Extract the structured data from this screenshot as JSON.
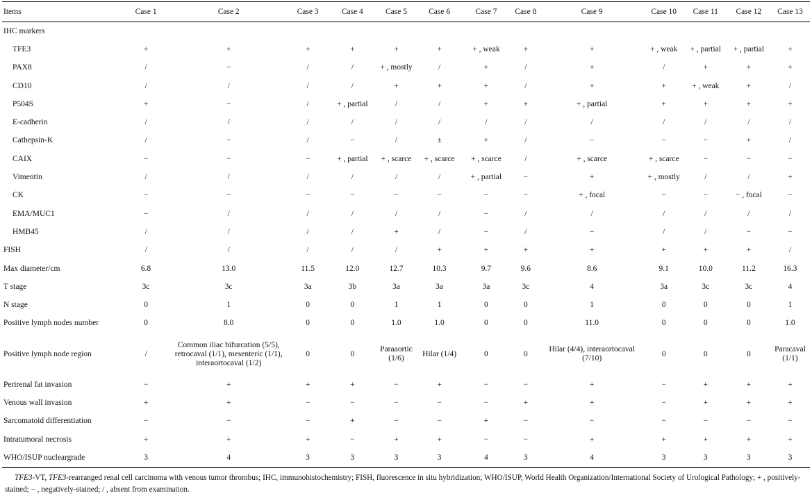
{
  "table": {
    "headers": [
      "Items",
      "Case 1",
      "Case 2",
      "Case 3",
      "Case 4",
      "Case 5",
      "Case 6",
      "Case 7",
      "Case 8",
      "Case 9",
      "Case 10",
      "Case 11",
      "Case 12",
      "Case 13"
    ],
    "rows": [
      {
        "label": "IHC markers",
        "group": true,
        "cells": [
          "",
          "",
          "",
          "",
          "",
          "",
          "",
          "",
          "",
          "",
          "",
          "",
          ""
        ]
      },
      {
        "label": "TFE3",
        "sub": true,
        "cells": [
          "+",
          "+",
          "+",
          "+",
          "+",
          "+",
          "+ , weak",
          "+",
          "+",
          "+ , weak",
          "+ , partial",
          "+ , partial",
          "+"
        ]
      },
      {
        "label": "PAX8",
        "sub": true,
        "cells": [
          "/",
          "−",
          "/",
          "/",
          "+ , mostly",
          "/",
          "+",
          "/",
          "+",
          "/",
          "+",
          "+",
          "+"
        ]
      },
      {
        "label": "CD10",
        "sub": true,
        "cells": [
          "/",
          "/",
          "/",
          "/",
          "+",
          "+",
          "+",
          "/",
          "+",
          "+",
          "+ , weak",
          "+",
          "/"
        ]
      },
      {
        "label": "P504S",
        "sub": true,
        "cells": [
          "+",
          "−",
          "/",
          "+ , partial",
          "/",
          "/",
          "+",
          "+",
          "+ , partial",
          "+",
          "+",
          "+",
          "+"
        ]
      },
      {
        "label": "E-cadherin",
        "sub": true,
        "cells": [
          "/",
          "/",
          "/",
          "/",
          "/",
          "/",
          "/",
          "/",
          "/",
          "/",
          "/",
          "/",
          "/"
        ]
      },
      {
        "label": "Cathepsin-K",
        "sub": true,
        "cells": [
          "/",
          "−",
          "/",
          "−",
          "/",
          "±",
          "+",
          "/",
          "−",
          "−",
          "−",
          "+",
          "/"
        ]
      },
      {
        "label": "CAIX",
        "sub": true,
        "cells": [
          "−",
          "−",
          "−",
          "+ , partial",
          "+ , scarce",
          "+ , scarce",
          "+ , scarce",
          "/",
          "+ , scarce",
          "+ , scarce",
          "−",
          "−",
          "−"
        ]
      },
      {
        "label": "Vimentin",
        "sub": true,
        "cells": [
          "/",
          "/",
          "/",
          "/",
          "/",
          "/",
          "+ , partial",
          "−",
          "+",
          "+ , mostly",
          "/",
          "/",
          "+"
        ]
      },
      {
        "label": "CK",
        "sub": true,
        "cells": [
          "−",
          "−",
          "−",
          "−",
          "−",
          "−",
          "−",
          "−",
          "+ , focal",
          "−",
          "−",
          "− , focal",
          "−"
        ]
      },
      {
        "label": "EMA/MUC1",
        "sub": true,
        "cells": [
          "−",
          "/",
          "/",
          "/",
          "/",
          "/",
          "−",
          "/",
          "/",
          "/",
          "/",
          "/",
          "/"
        ]
      },
      {
        "label": "HMB45",
        "sub": true,
        "cells": [
          "/",
          "/",
          "/",
          "/",
          "+",
          "/",
          "−",
          "/",
          "−",
          "/",
          "/",
          "−",
          "−"
        ]
      },
      {
        "label": "FISH",
        "cells": [
          "/",
          "/",
          "/",
          "/",
          "/",
          "+",
          "+",
          "+",
          "+",
          "+",
          "+",
          "+",
          "/"
        ]
      },
      {
        "label": "Max diameter/cm",
        "cells": [
          "6.8",
          "13.0",
          "11.5",
          "12.0",
          "12.7",
          "10.3",
          "9.7",
          "9.6",
          "8.6",
          "9.1",
          "10.0",
          "11.2",
          "16.3"
        ]
      },
      {
        "label": "T stage",
        "cells": [
          "3c",
          "3c",
          "3a",
          "3b",
          "3a",
          "3a",
          "3a",
          "3c",
          "4",
          "3a",
          "3c",
          "3c",
          "4"
        ]
      },
      {
        "label": "N stage",
        "cells": [
          "0",
          "1",
          "0",
          "0",
          "1",
          "1",
          "0",
          "0",
          "1",
          "0",
          "0",
          "0",
          "1"
        ]
      },
      {
        "label": "Positive lymph nodes number",
        "cells": [
          "0",
          "8.0",
          "0",
          "0",
          "1.0",
          "1.0",
          "0",
          "0",
          "11.0",
          "0",
          "0",
          "0",
          "1.0"
        ]
      },
      {
        "label": "Positive lymph node region",
        "tall": true,
        "cells": [
          "/",
          "Common iliac bifurcation (5/5), retrocaval (1/1), mesenteric (1/1), interaortocaval (1/2)",
          "0",
          "0",
          "Paraaortic (1/6)",
          "Hilar (1/4)",
          "0",
          "0",
          "Hilar (4/4), interaortocaval (7/10)",
          "0",
          "0",
          "0",
          "Paracaval (1/1)"
        ]
      },
      {
        "label": "Perirenal fat invasion",
        "cells": [
          "−",
          "+",
          "+",
          "+",
          "−",
          "+",
          "−",
          "−",
          "+",
          "−",
          "+",
          "+",
          "+"
        ]
      },
      {
        "label": "Venous wall invasion",
        "cells": [
          "+",
          "+",
          "−",
          "−",
          "−",
          "−",
          "−",
          "+",
          "+",
          "−",
          "+",
          "+",
          "+"
        ]
      },
      {
        "label": "Sarcomatoid differentiation",
        "cells": [
          "−",
          "−",
          "−",
          "+",
          "−",
          "−",
          "+",
          "−",
          "−",
          "−",
          "−",
          "−",
          "−"
        ]
      },
      {
        "label": "Intratumoral necrosis",
        "cells": [
          "+",
          "+",
          "+",
          "−",
          "+",
          "+",
          "−",
          "−",
          "+",
          "+",
          "+",
          "+",
          "+"
        ]
      },
      {
        "label": "WHO/ISUP nucleargrade",
        "last": true,
        "cells": [
          "3",
          "4",
          "3",
          "3",
          "3",
          "3",
          "4",
          "3",
          "4",
          "3",
          "3",
          "3",
          "3"
        ]
      }
    ]
  },
  "footnote": {
    "t1": "TFE3",
    "t2": "-VT, ",
    "t3": "TFE3",
    "t4": "-rearranged renal cell carcinoma with venous tumor thrombus; IHC, immunohistochemistry; FISH, fluorescence in situ hybridization; WHO/ISUP, World Health Organization/International Society of Urological Pathology; + , positively-stained; − , negatively-stained; / , absent from examination."
  }
}
